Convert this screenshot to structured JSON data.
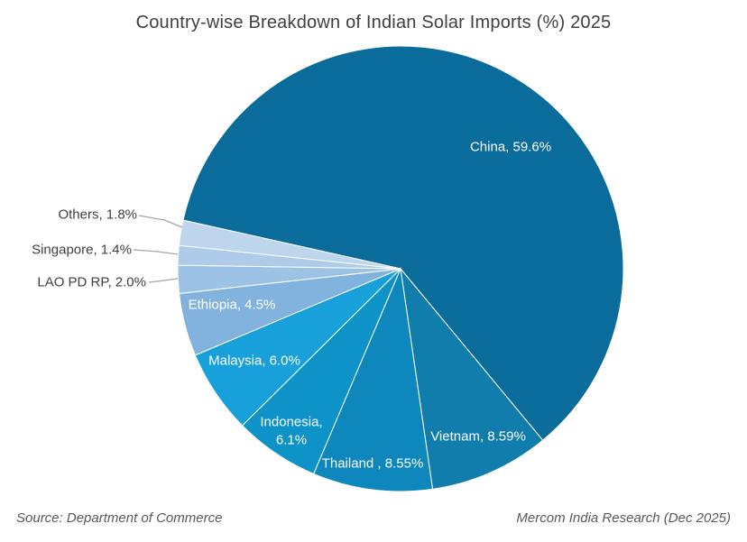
{
  "title": "Country-wise Breakdown of Indian Solar Imports (%) 2025",
  "footer": {
    "source": "Source: Department of Commerce",
    "credit": "Mercom India Research (Dec 2025)"
  },
  "chart_data": {
    "type": "pie",
    "title": "Country-wise Breakdown of Indian Solar Imports (%) 2025",
    "unit": "percent",
    "rotation": "clockwise",
    "start_angle_deg": 282.6,
    "legend": "none",
    "labels": "category-and-value-on-slice, small slices labeled outside with leader lines",
    "slices": [
      {
        "name": "China",
        "value": 59.6,
        "label": "China, 59.6%",
        "color": "#0A6C9A",
        "label_color": "#FFFFFF"
      },
      {
        "name": "Vietnam",
        "value": 8.59,
        "label": "Vietnam, 8.59%",
        "color": "#117DAD",
        "label_color": "#FFFFFF"
      },
      {
        "name": "Thailand",
        "value": 8.55,
        "label": "Thailand , 8.55%",
        "color": "#0D87BC",
        "label_color": "#FFFFFF"
      },
      {
        "name": "Indonesia",
        "value": 6.1,
        "label": "Indonesia, 6.1%",
        "color": "#0E93C8",
        "label_color": "#FFFFFF"
      },
      {
        "name": "Malaysia",
        "value": 6.0,
        "label": "Malaysia, 6.0%",
        "color": "#18A0DB",
        "label_color": "#FFFFFF"
      },
      {
        "name": "Ethiopia",
        "value": 4.5,
        "label": "Ethiopia, 4.5%",
        "color": "#82B3DF",
        "label_color": "#FFFFFF"
      },
      {
        "name": "LAO PD RP",
        "value": 2.0,
        "label": "LAO PD RP, 2.0%",
        "color": "#9CC3E5",
        "label_color": "#404040",
        "label_outside": true
      },
      {
        "name": "Singapore",
        "value": 1.4,
        "label": "Singapore, 1.4%",
        "color": "#AECBE9",
        "label_color": "#404040",
        "label_outside": true
      },
      {
        "name": "Others",
        "value": 1.8,
        "label": "Others, 1.8%",
        "color": "#BDD6EE",
        "label_color": "#404040",
        "label_outside": true
      }
    ]
  }
}
